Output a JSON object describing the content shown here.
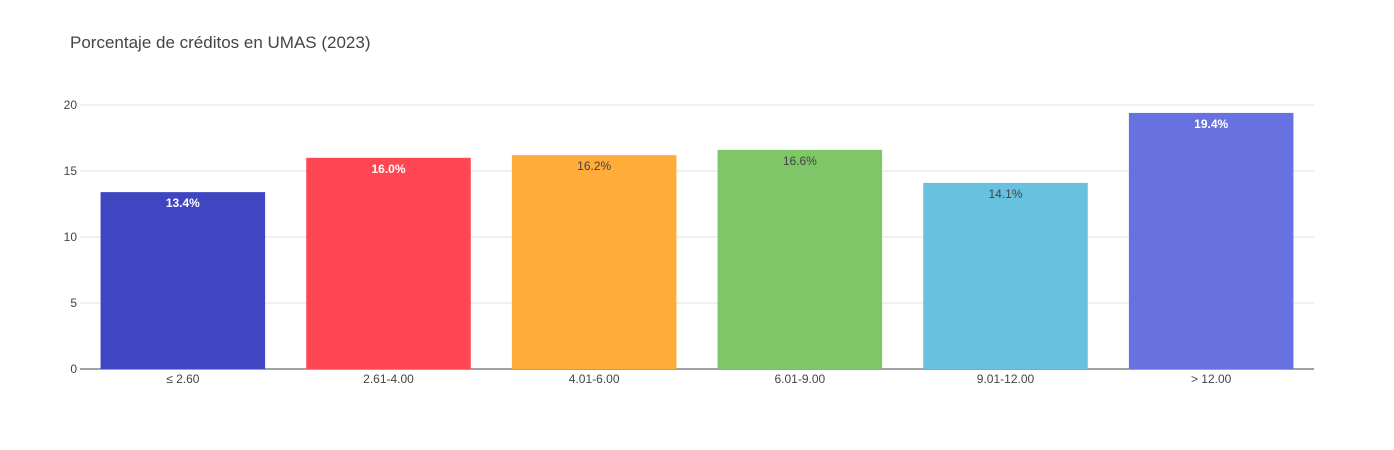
{
  "chart_data": {
    "type": "bar",
    "title": "Porcentaje de créditos en UMAS (2023)",
    "xlabel": "",
    "ylabel": "",
    "ylim": [
      0,
      20
    ],
    "yticks": [
      0,
      5,
      10,
      15,
      20
    ],
    "grid": true,
    "categories": [
      "≤ 2.60",
      "2.61-4.00",
      "4.01-6.00",
      "6.01-9.00",
      "9.01-12.00",
      "> 12.00"
    ],
    "values": [
      13.4,
      16.0,
      16.2,
      16.6,
      14.1,
      19.4
    ],
    "data_labels": [
      "13.4%",
      "16.0%",
      "16.2%",
      "16.6%",
      "14.1%",
      "19.4%"
    ],
    "colors": [
      "#4046C2",
      "#FF4754",
      "#FFAC3A",
      "#7EC667",
      "#67C1DF",
      "#6771DF"
    ],
    "label_colors": [
      "#ffffff",
      "#ffffff",
      "#444444",
      "#444444",
      "#444444",
      "#ffffff"
    ]
  }
}
